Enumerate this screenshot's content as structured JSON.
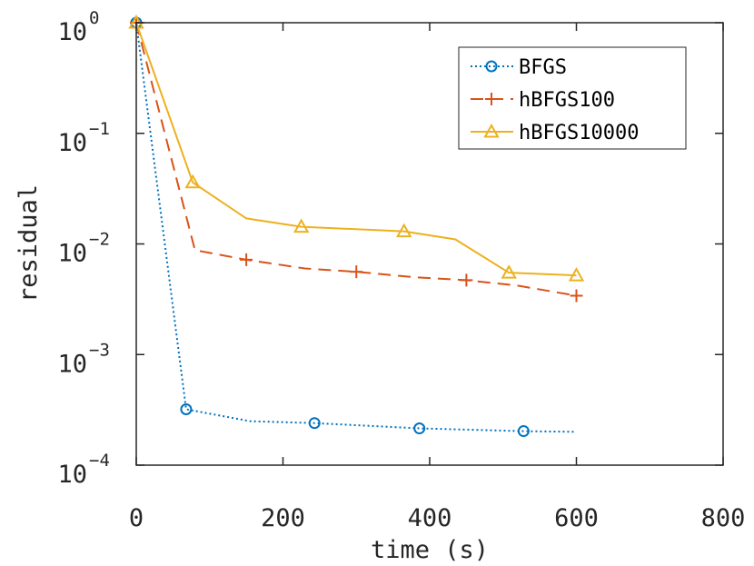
{
  "chart_data": {
    "type": "line",
    "title": "",
    "xlabel": "time (s)",
    "ylabel": "residual",
    "xlim": [
      0,
      800
    ],
    "ylim": [
      0.0001,
      1
    ],
    "yscale": "log",
    "x_ticks": [
      "0",
      "200",
      "400",
      "600",
      "800"
    ],
    "y_ticks": [
      {
        "base": "10",
        "exp": "0"
      },
      {
        "base": "10",
        "exp": "−1"
      },
      {
        "base": "10",
        "exp": "−2"
      },
      {
        "base": "10",
        "exp": "−3"
      },
      {
        "base": "10",
        "exp": "−4"
      }
    ],
    "grid": false,
    "legend_position": "top-right",
    "series": [
      {
        "name": "BFGS",
        "color": "#0072BD",
        "line_style": "dotted",
        "marker": "circle",
        "x": [
          0,
          68,
          155,
          243,
          386,
          528,
          600
        ],
        "y": [
          1.0,
          0.00032,
          0.00025,
          0.00024,
          0.000215,
          0.000203,
          0.0002
        ],
        "marker_x": [
          0,
          68,
          243,
          386,
          528
        ],
        "marker_y": [
          1.0,
          0.00032,
          0.00024,
          0.000215,
          0.000203
        ]
      },
      {
        "name": "hBFGS100",
        "color": "#D95319",
        "line_style": "dashed",
        "marker": "plus",
        "x": [
          0,
          80,
          150,
          230,
          300,
          380,
          450,
          520,
          600
        ],
        "y": [
          1.0,
          0.0088,
          0.0072,
          0.006,
          0.0056,
          0.005,
          0.0047,
          0.0042,
          0.0034
        ],
        "marker_x": [
          0,
          150,
          300,
          450,
          600
        ],
        "marker_y": [
          1.0,
          0.0072,
          0.0056,
          0.0047,
          0.0034
        ]
      },
      {
        "name": "hBFGS10000",
        "color": "#EDB120",
        "line_style": "solid",
        "marker": "triangle",
        "x": [
          0,
          77,
          150,
          225,
          365,
          435,
          508,
          600
        ],
        "y": [
          1.0,
          0.036,
          0.017,
          0.0143,
          0.013,
          0.011,
          0.0055,
          0.0052
        ],
        "marker_x": [
          0,
          77,
          225,
          365,
          508,
          600
        ],
        "marker_y": [
          1.0,
          0.036,
          0.0143,
          0.013,
          0.0055,
          0.0052
        ]
      }
    ]
  }
}
